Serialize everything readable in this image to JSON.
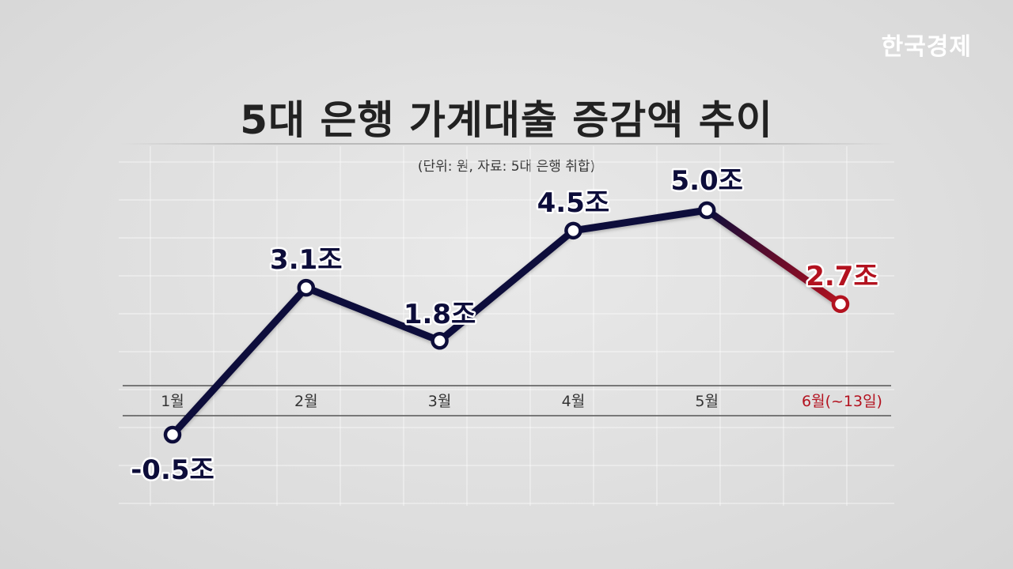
{
  "brand": {
    "logo": "한국경제"
  },
  "colors": {
    "main_series": "#0d0d3a",
    "highlight": "#b3121f",
    "grid": "#ffffff",
    "axis": "#555555"
  },
  "chart_data": {
    "type": "line",
    "title": "5대 은행 가계대출 증감액 추이",
    "subtitle": "(단위: 원, 자료: 5대 은행 취합)",
    "categories": [
      "1월",
      "2월",
      "3월",
      "4월",
      "5월",
      "6월(~13일)"
    ],
    "series": [
      {
        "values": [
          -0.5,
          3.1,
          1.8,
          4.5,
          5.0,
          2.7
        ]
      }
    ],
    "data_labels": [
      "-0.5조",
      "3.1조",
      "1.8조",
      "4.5조",
      "5.0조",
      "2.7조"
    ],
    "highlight_index": 5,
    "ylim": [
      -0.5,
      5.0
    ],
    "grid": true,
    "legend": "none"
  }
}
